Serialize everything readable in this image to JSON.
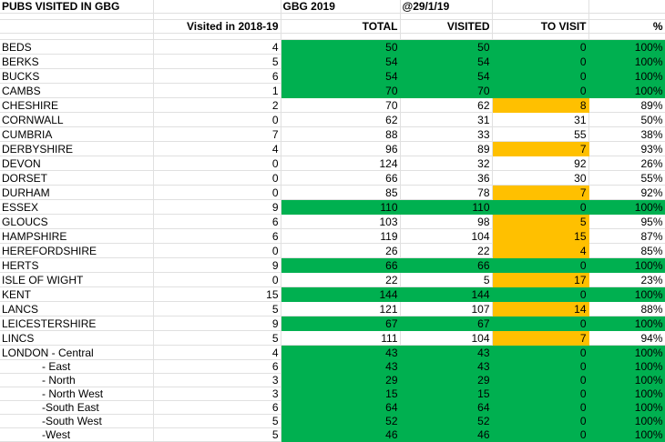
{
  "header": {
    "title": "PUBS VISITED IN GBG",
    "edition": "GBG 2019",
    "asof": "@29/1/19"
  },
  "columns": {
    "visited_period": "Visited in 2018-19",
    "total": "TOTAL",
    "visited": "VISITED",
    "to_visit": "TO VISIT",
    "pct": "%"
  },
  "rows": [
    {
      "name": "BEDS",
      "period": "4",
      "total": "50",
      "visited": "50",
      "to_visit": "0",
      "pct": "100%",
      "status": "complete"
    },
    {
      "name": "BERKS",
      "period": "5",
      "total": "54",
      "visited": "54",
      "to_visit": "0",
      "pct": "100%",
      "status": "complete"
    },
    {
      "name": "BUCKS",
      "period": "6",
      "total": "54",
      "visited": "54",
      "to_visit": "0",
      "pct": "100%",
      "status": "complete"
    },
    {
      "name": "CAMBS",
      "period": "1",
      "total": "70",
      "visited": "70",
      "to_visit": "0",
      "pct": "100%",
      "status": "complete"
    },
    {
      "name": "CHESHIRE",
      "period": "2",
      "total": "70",
      "visited": "62",
      "to_visit": "8",
      "pct": "89%",
      "status": "near"
    },
    {
      "name": "CORNWALL",
      "period": "0",
      "total": "62",
      "visited": "31",
      "to_visit": "31",
      "pct": "50%",
      "status": "none"
    },
    {
      "name": "CUMBRIA",
      "period": "7",
      "total": "88",
      "visited": "33",
      "to_visit": "55",
      "pct": "38%",
      "status": "none"
    },
    {
      "name": "DERBYSHIRE",
      "period": "4",
      "total": "96",
      "visited": "89",
      "to_visit": "7",
      "pct": "93%",
      "status": "near"
    },
    {
      "name": "DEVON",
      "period": "0",
      "total": "124",
      "visited": "32",
      "to_visit": "92",
      "pct": "26%",
      "status": "none"
    },
    {
      "name": "DORSET",
      "period": "0",
      "total": "66",
      "visited": "36",
      "to_visit": "30",
      "pct": "55%",
      "status": "none"
    },
    {
      "name": "DURHAM",
      "period": "0",
      "total": "85",
      "visited": "78",
      "to_visit": "7",
      "pct": "92%",
      "status": "near"
    },
    {
      "name": "ESSEX",
      "period": "9",
      "total": "110",
      "visited": "110",
      "to_visit": "0",
      "pct": "100%",
      "status": "complete"
    },
    {
      "name": "GLOUCS",
      "period": "6",
      "total": "103",
      "visited": "98",
      "to_visit": "5",
      "pct": "95%",
      "status": "near"
    },
    {
      "name": "HAMPSHIRE",
      "period": "6",
      "total": "119",
      "visited": "104",
      "to_visit": "15",
      "pct": "87%",
      "status": "near"
    },
    {
      "name": "HEREFORDSHIRE",
      "period": "0",
      "total": "26",
      "visited": "22",
      "to_visit": "4",
      "pct": "85%",
      "status": "near"
    },
    {
      "name": "HERTS",
      "period": "9",
      "total": "66",
      "visited": "66",
      "to_visit": "0",
      "pct": "100%",
      "status": "complete"
    },
    {
      "name": "ISLE OF WIGHT",
      "period": "0",
      "total": "22",
      "visited": "5",
      "to_visit": "17",
      "pct": "23%",
      "status": "near"
    },
    {
      "name": "KENT",
      "period": "15",
      "total": "144",
      "visited": "144",
      "to_visit": "0",
      "pct": "100%",
      "status": "complete"
    },
    {
      "name": "LANCS",
      "period": "5",
      "total": "121",
      "visited": "107",
      "to_visit": "14",
      "pct": "88%",
      "status": "near"
    },
    {
      "name": "LEICESTERSHIRE",
      "period": "9",
      "total": "67",
      "visited": "67",
      "to_visit": "0",
      "pct": "100%",
      "status": "complete"
    },
    {
      "name": "LINCS",
      "period": "5",
      "total": "111",
      "visited": "104",
      "to_visit": "7",
      "pct": "94%",
      "status": "near"
    },
    {
      "name": "LONDON - Central",
      "period": "4",
      "total": "43",
      "visited": "43",
      "to_visit": "0",
      "pct": "100%",
      "status": "complete"
    },
    {
      "name": "- East",
      "period": "6",
      "total": "43",
      "visited": "43",
      "to_visit": "0",
      "pct": "100%",
      "status": "complete",
      "sub": true
    },
    {
      "name": "- North",
      "period": "3",
      "total": "29",
      "visited": "29",
      "to_visit": "0",
      "pct": "100%",
      "status": "complete",
      "sub": true
    },
    {
      "name": "- North West",
      "period": "3",
      "total": "15",
      "visited": "15",
      "to_visit": "0",
      "pct": "100%",
      "status": "complete",
      "sub": true
    },
    {
      "name": "-South East",
      "period": "6",
      "total": "64",
      "visited": "64",
      "to_visit": "0",
      "pct": "100%",
      "status": "complete",
      "sub": true
    },
    {
      "name": "-South West",
      "period": "5",
      "total": "52",
      "visited": "52",
      "to_visit": "0",
      "pct": "100%",
      "status": "complete",
      "sub": true
    },
    {
      "name": "-West",
      "period": "5",
      "total": "46",
      "visited": "46",
      "to_visit": "0",
      "pct": "100%",
      "status": "complete",
      "sub": true
    }
  ],
  "colors": {
    "complete": "#00b050",
    "near": "#ffc000",
    "gridline": "#e0e0e0"
  }
}
